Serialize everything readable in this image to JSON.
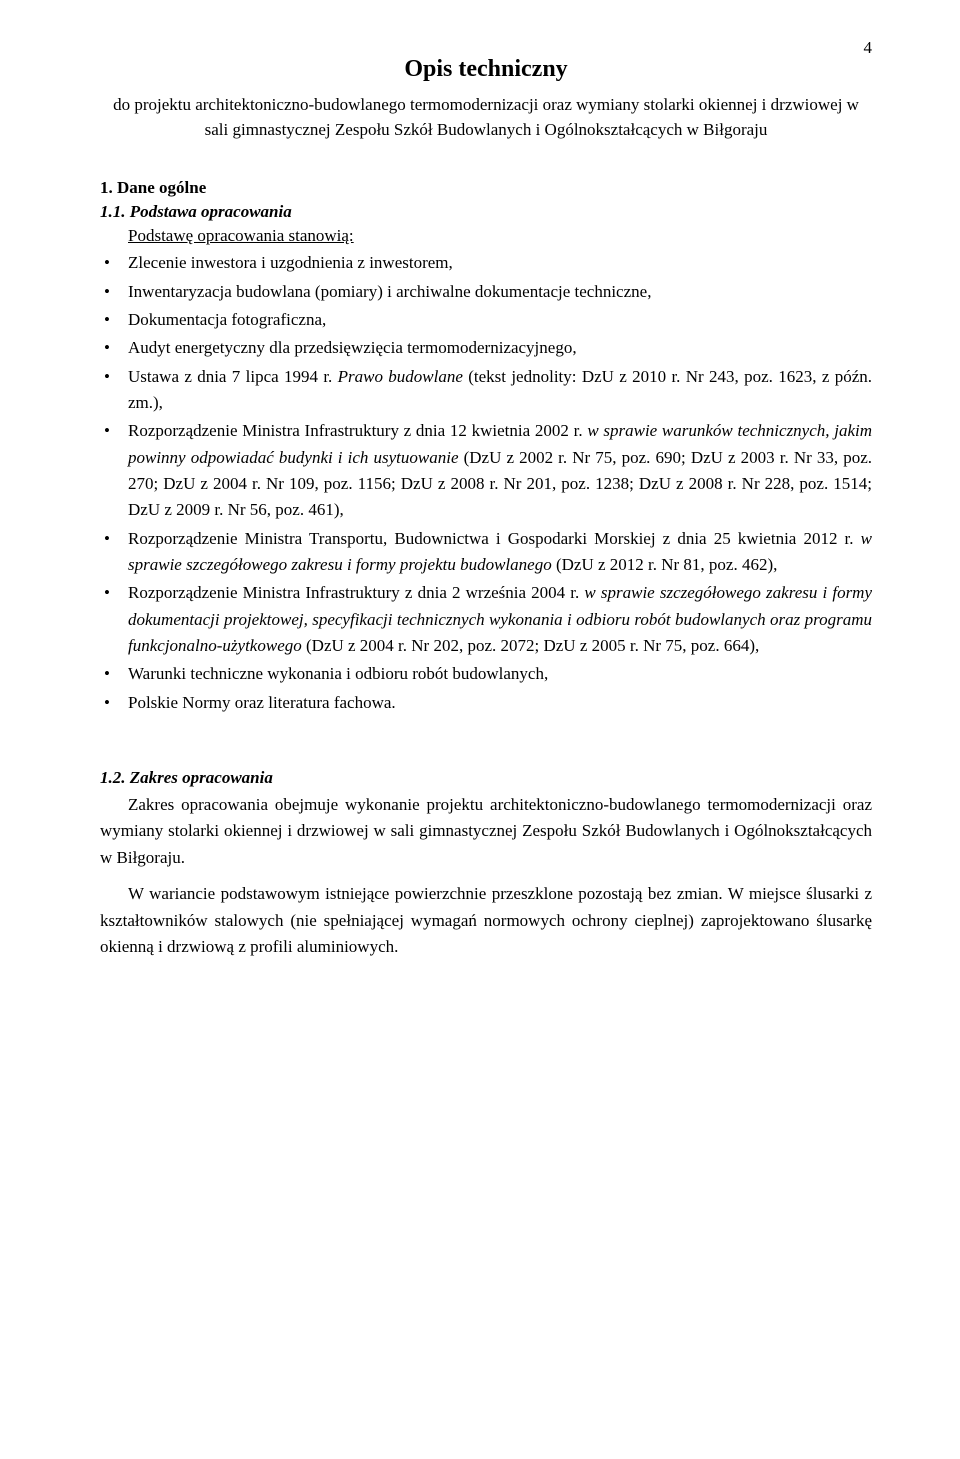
{
  "page_number": "4",
  "title": "Opis techniczny",
  "subtitle": "do projektu architektoniczno-budowlanego termomodernizacji oraz wymiany stolarki okiennej i drzwiowej w sali gimnastycznej Zespołu Szkół Budowlanych i Ogólnokształcących w Biłgoraju",
  "section1": {
    "heading": "1. Dane ogólne",
    "sub1": {
      "heading": "1.1. Podstawa opracowania",
      "lead": "Podstawę opracowania stanowią:",
      "items": {
        "b1": "Zlecenie inwestora i uzgodnienia z inwestorem,",
        "b2": "Inwentaryzacja budowlana (pomiary) i archiwalne dokumentacje techniczne,",
        "b3": "Dokumentacja fotograficzna,",
        "b4": "Audyt energetyczny dla przedsięwzięcia termomodernizacyjnego,",
        "b5_pre": "Ustawa z dnia 7 lipca 1994 r. ",
        "b5_it": "Prawo budowlane",
        "b5_post": " (tekst jednolity: DzU z 2010 r. Nr 243, poz. 1623, z późn. zm.),",
        "b6_pre": "Rozporządzenie Ministra Infrastruktury z dnia 12 kwietnia 2002 r. ",
        "b6_it": "w sprawie warunków technicznych, jakim powinny odpowiadać budynki i ich usytuowanie",
        "b6_post": " (DzU z 2002 r. Nr 75, poz. 690; DzU z 2003 r. Nr 33, poz. 270; DzU z 2004 r. Nr 109, poz. 1156; DzU z 2008 r. Nr 201, poz. 1238; DzU z 2008 r. Nr 228, poz. 1514; DzU z 2009 r. Nr 56, poz. 461),",
        "b7_pre": "Rozporządzenie Ministra Transportu, Budownictwa i Gospodarki Morskiej z dnia 25 kwietnia 2012 r. ",
        "b7_it": "w sprawie szczegółowego zakresu i formy projektu budowlanego",
        "b7_post": " (DzU z 2012 r. Nr 81, poz. 462),",
        "b8_pre": "Rozporządzenie Ministra Infrastruktury z dnia 2 września 2004 r. ",
        "b8_it": "w sprawie szczegółowego zakresu i formy dokumentacji projektowej, specyfikacji technicznych wykonania i odbioru robót budowlanych oraz programu funkcjonalno-użytkowego",
        "b8_post": " (DzU z 2004 r. Nr 202, poz. 2072; DzU z 2005 r. Nr 75, poz. 664),",
        "b9": "Warunki techniczne wykonania i odbioru robót budowlanych,",
        "b10": "Polskie Normy oraz literatura fachowa."
      }
    },
    "sub2": {
      "heading": "1.2. Zakres opracowania",
      "p1": "Zakres opracowania obejmuje wykonanie projektu architektoniczno-budowlanego termomodernizacji oraz wymiany stolarki okiennej i drzwiowej w sali gimnastycznej Zespołu Szkół Budowlanych i Ogólnokształcących w Biłgoraju.",
      "p2": "W wariancie podstawowym istniejące powierzchnie przeszklone pozostają bez zmian. W miejsce ślusarki z kształtowników stalowych (nie spełniającej wymagań normowych ochrony cieplnej) zaprojektowano ślusarkę okienną i drzwiową z profili aluminiowych."
    }
  }
}
